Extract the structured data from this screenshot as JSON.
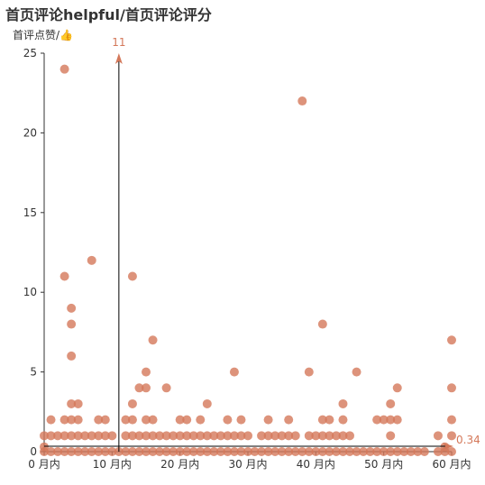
{
  "chart_data": {
    "type": "scatter",
    "title": "首页评论helpful/首页评论评分",
    "ylabel": "首评点赞/👍",
    "xlabel": "",
    "xlim": [
      0,
      60
    ],
    "ylim": [
      0,
      25
    ],
    "x_ticks": [
      "0 月内",
      "10 月内",
      "20 月内",
      "30 月内",
      "40 月内",
      "50 月内",
      "60 月内"
    ],
    "y_ticks": [
      "0",
      "5",
      "10",
      "15",
      "20",
      "25"
    ],
    "point_color": "#d4785a",
    "mark_line_color": "#000000",
    "mark_label_color": "#d4785a",
    "mark_lines": [
      {
        "axis": "x",
        "value": 11,
        "label": "11"
      },
      {
        "axis": "y",
        "value": 0.34,
        "label": "0.34"
      }
    ],
    "points": [
      [
        0,
        0
      ],
      [
        0,
        1
      ],
      [
        0,
        0.3
      ],
      [
        1,
        0
      ],
      [
        1,
        1
      ],
      [
        1,
        2
      ],
      [
        2,
        0
      ],
      [
        2,
        1
      ],
      [
        3,
        0
      ],
      [
        3,
        1
      ],
      [
        3,
        2
      ],
      [
        3,
        11
      ],
      [
        3,
        24
      ],
      [
        4,
        0
      ],
      [
        4,
        1
      ],
      [
        4,
        2
      ],
      [
        4,
        3
      ],
      [
        4,
        6
      ],
      [
        4,
        8
      ],
      [
        4,
        9
      ],
      [
        5,
        0
      ],
      [
        5,
        1
      ],
      [
        5,
        2
      ],
      [
        5,
        3
      ],
      [
        6,
        0
      ],
      [
        6,
        1
      ],
      [
        7,
        0
      ],
      [
        7,
        1
      ],
      [
        7,
        12
      ],
      [
        8,
        0
      ],
      [
        8,
        1
      ],
      [
        8,
        2
      ],
      [
        9,
        0
      ],
      [
        9,
        1
      ],
      [
        9,
        2
      ],
      [
        10,
        0
      ],
      [
        10,
        1
      ],
      [
        11,
        0
      ],
      [
        12,
        0
      ],
      [
        12,
        1
      ],
      [
        12,
        2
      ],
      [
        13,
        0
      ],
      [
        13,
        1
      ],
      [
        13,
        2
      ],
      [
        13,
        3
      ],
      [
        13,
        11
      ],
      [
        14,
        0
      ],
      [
        14,
        1
      ],
      [
        14,
        4
      ],
      [
        15,
        0
      ],
      [
        15,
        1
      ],
      [
        15,
        2
      ],
      [
        15,
        4
      ],
      [
        15,
        5
      ],
      [
        16,
        0
      ],
      [
        16,
        1
      ],
      [
        16,
        2
      ],
      [
        16,
        7
      ],
      [
        17,
        0
      ],
      [
        17,
        1
      ],
      [
        18,
        0
      ],
      [
        18,
        1
      ],
      [
        18,
        4
      ],
      [
        19,
        0
      ],
      [
        19,
        1
      ],
      [
        20,
        0
      ],
      [
        20,
        1
      ],
      [
        20,
        2
      ],
      [
        21,
        0
      ],
      [
        21,
        1
      ],
      [
        21,
        2
      ],
      [
        22,
        0
      ],
      [
        22,
        1
      ],
      [
        23,
        0
      ],
      [
        23,
        1
      ],
      [
        23,
        2
      ],
      [
        24,
        0
      ],
      [
        24,
        1
      ],
      [
        24,
        3
      ],
      [
        25,
        0
      ],
      [
        25,
        1
      ],
      [
        26,
        0
      ],
      [
        26,
        1
      ],
      [
        27,
        0
      ],
      [
        27,
        1
      ],
      [
        27,
        2
      ],
      [
        28,
        0
      ],
      [
        28,
        1
      ],
      [
        28,
        5
      ],
      [
        29,
        0
      ],
      [
        29,
        1
      ],
      [
        29,
        2
      ],
      [
        30,
        0
      ],
      [
        30,
        1
      ],
      [
        31,
        0
      ],
      [
        32,
        0
      ],
      [
        32,
        1
      ],
      [
        33,
        0
      ],
      [
        33,
        1
      ],
      [
        33,
        2
      ],
      [
        34,
        0
      ],
      [
        34,
        1
      ],
      [
        35,
        0
      ],
      [
        35,
        1
      ],
      [
        36,
        0
      ],
      [
        36,
        1
      ],
      [
        36,
        2
      ],
      [
        37,
        0
      ],
      [
        37,
        1
      ],
      [
        38,
        0
      ],
      [
        38,
        22
      ],
      [
        39,
        0
      ],
      [
        39,
        1
      ],
      [
        39,
        5
      ],
      [
        40,
        0
      ],
      [
        40,
        1
      ],
      [
        41,
        0
      ],
      [
        41,
        1
      ],
      [
        41,
        2
      ],
      [
        41,
        8
      ],
      [
        42,
        0
      ],
      [
        42,
        1
      ],
      [
        42,
        2
      ],
      [
        43,
        0
      ],
      [
        43,
        1
      ],
      [
        44,
        0
      ],
      [
        44,
        1
      ],
      [
        44,
        2
      ],
      [
        44,
        3
      ],
      [
        45,
        0
      ],
      [
        45,
        1
      ],
      [
        46,
        0
      ],
      [
        46,
        5
      ],
      [
        47,
        0
      ],
      [
        48,
        0
      ],
      [
        49,
        0
      ],
      [
        49,
        2
      ],
      [
        50,
        0
      ],
      [
        50,
        2
      ],
      [
        51,
        0
      ],
      [
        51,
        1
      ],
      [
        51,
        2
      ],
      [
        51,
        3
      ],
      [
        52,
        0
      ],
      [
        52,
        2
      ],
      [
        52,
        4
      ],
      [
        53,
        0
      ],
      [
        54,
        0
      ],
      [
        55,
        0
      ],
      [
        56,
        0
      ],
      [
        58,
        0
      ],
      [
        58,
        1
      ],
      [
        59,
        0
      ],
      [
        59,
        0.3
      ],
      [
        60,
        0
      ],
      [
        60,
        1
      ],
      [
        60,
        2
      ],
      [
        60,
        4
      ],
      [
        60,
        7
      ]
    ]
  }
}
